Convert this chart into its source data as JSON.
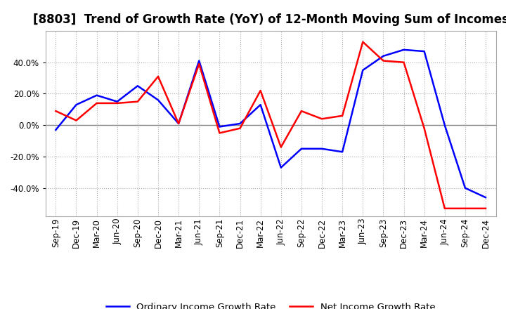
{
  "title": "[8803]  Trend of Growth Rate (YoY) of 12-Month Moving Sum of Incomes",
  "ylim": [
    -0.58,
    0.6
  ],
  "yticks": [
    -0.4,
    -0.2,
    0.0,
    0.2,
    0.4
  ],
  "x_labels": [
    "Sep-19",
    "Dec-19",
    "Mar-20",
    "Jun-20",
    "Sep-20",
    "Dec-20",
    "Mar-21",
    "Jun-21",
    "Sep-21",
    "Dec-21",
    "Mar-22",
    "Jun-22",
    "Sep-22",
    "Dec-22",
    "Mar-23",
    "Jun-23",
    "Sep-23",
    "Dec-23",
    "Mar-24",
    "Jun-24",
    "Sep-24",
    "Dec-24"
  ],
  "ordinary_income": [
    -0.03,
    0.13,
    0.19,
    0.15,
    0.25,
    0.16,
    0.01,
    0.41,
    -0.01,
    0.01,
    0.13,
    -0.27,
    -0.15,
    -0.15,
    -0.17,
    0.35,
    0.44,
    0.48,
    0.47,
    0.0,
    -0.4,
    -0.46
  ],
  "net_income": [
    0.09,
    0.03,
    0.14,
    0.14,
    0.15,
    0.31,
    0.01,
    0.39,
    -0.05,
    -0.02,
    0.22,
    -0.14,
    0.09,
    0.04,
    0.06,
    0.53,
    0.41,
    0.4,
    -0.02,
    -0.53,
    -0.53,
    -0.53
  ],
  "line_color_ordinary": "#0000ff",
  "line_color_net": "#ff0000",
  "background_color": "#ffffff",
  "plot_bg_color": "#ffffff",
  "grid_color": "#aaaaaa",
  "zero_line_color": "#888888",
  "spine_color": "#aaaaaa",
  "legend_ordinary": "Ordinary Income Growth Rate",
  "legend_net": "Net Income Growth Rate",
  "title_fontsize": 12,
  "tick_fontsize": 8.5,
  "legend_fontsize": 9.5
}
